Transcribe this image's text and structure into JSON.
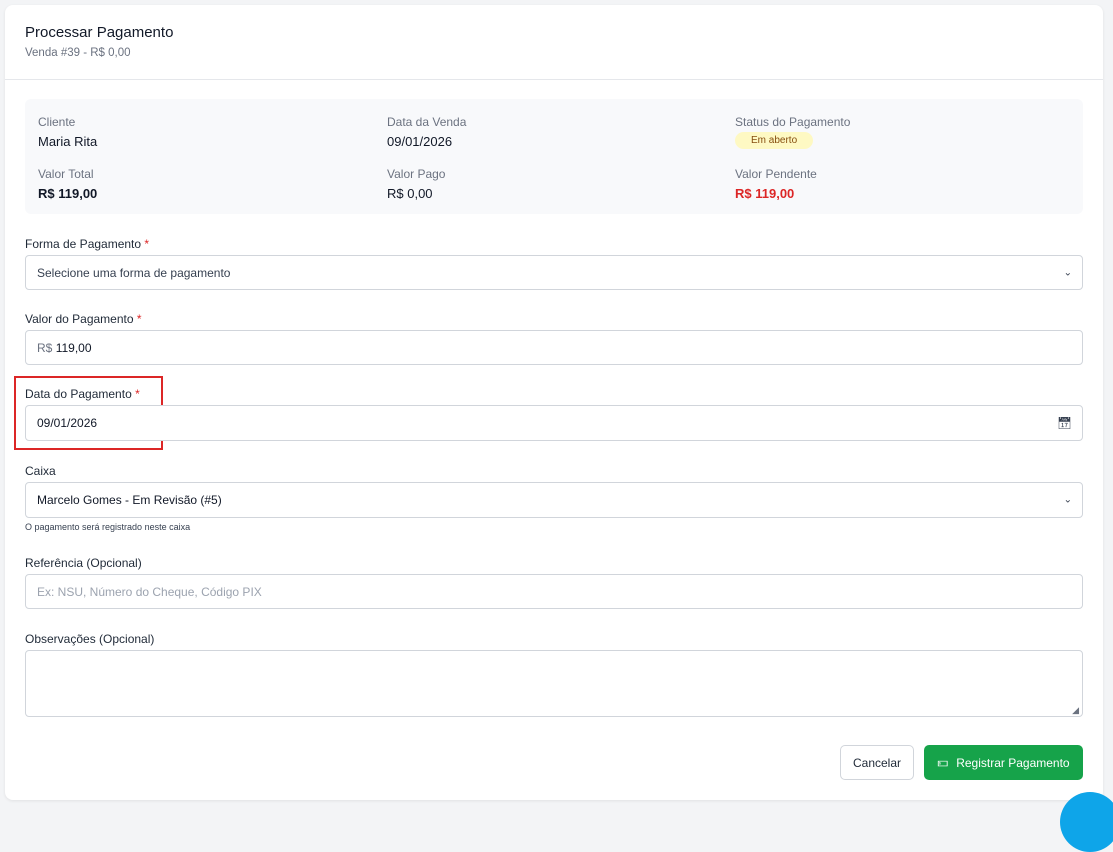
{
  "header": {
    "title": "Processar Pagamento",
    "subtitle": "Venda #39 - R$ 0,00"
  },
  "summary": {
    "cliente_label": "Cliente",
    "cliente": "Maria Rita",
    "data_label": "Data da Venda",
    "data": "09/01/2026",
    "status_label": "Status do Pagamento",
    "status": "Em aberto",
    "total_label": "Valor Total",
    "total": "R$ 119,00",
    "pago_label": "Valor Pago",
    "pago": "R$ 0,00",
    "pendente_label": "Valor Pendente",
    "pendente": "R$ 119,00"
  },
  "form": {
    "forma_label": "Forma de Pagamento",
    "forma_placeholder": "Selecione uma forma de pagamento",
    "valor_label": "Valor do Pagamento",
    "valor_prefix": "R$",
    "valor": "119,00",
    "data_label": "Data do Pagamento",
    "data": "09/01/2026",
    "caixa_label": "Caixa",
    "caixa": "Marcelo Gomes - Em Revisão (#5)",
    "caixa_hint": "O pagamento será registrado neste caixa",
    "ref_label": "Referência (Opcional)",
    "ref_placeholder": "Ex: NSU, Número do Cheque, Código PIX",
    "obs_label": "Observações (Opcional)",
    "obs": "",
    "required": "*"
  },
  "actions": {
    "cancel": "Cancelar",
    "submit": "Registrar Pagamento"
  },
  "colors": {
    "primary": "#16a34a",
    "danger": "#dc2626",
    "badge_bg": "#fef9c3"
  }
}
